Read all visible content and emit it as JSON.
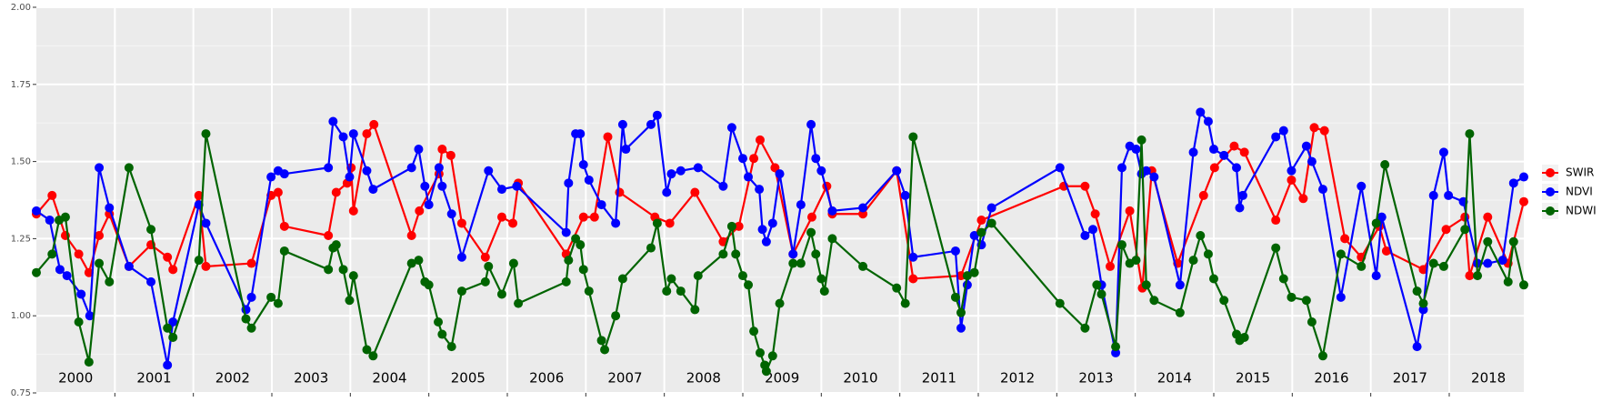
{
  "chart_data": {
    "type": "line",
    "xlim": [
      2000,
      2018.95
    ],
    "ylim": [
      0.75,
      2.0
    ],
    "yticks": [
      {
        "value": 0.75,
        "label": "0.75"
      },
      {
        "value": 1.0,
        "label": "1.00"
      },
      {
        "value": 1.25,
        "label": "1.25"
      },
      {
        "value": 1.5,
        "label": "1.50"
      },
      {
        "value": 1.75,
        "label": "1.75"
      },
      {
        "value": 2.0,
        "label": "2.00"
      }
    ],
    "xticks": [
      {
        "value": 2000.5,
        "label": "2000"
      },
      {
        "value": 2001.5,
        "label": "2001"
      },
      {
        "value": 2002.5,
        "label": "2002"
      },
      {
        "value": 2003.5,
        "label": "2003"
      },
      {
        "value": 2004.5,
        "label": "2004"
      },
      {
        "value": 2005.5,
        "label": "2005"
      },
      {
        "value": 2006.5,
        "label": "2006"
      },
      {
        "value": 2007.5,
        "label": "2007"
      },
      {
        "value": 2008.5,
        "label": "2008"
      },
      {
        "value": 2009.5,
        "label": "2009"
      },
      {
        "value": 2010.5,
        "label": "2010"
      },
      {
        "value": 2011.5,
        "label": "2011"
      },
      {
        "value": 2012.5,
        "label": "2012"
      },
      {
        "value": 2013.5,
        "label": "2013"
      },
      {
        "value": 2014.5,
        "label": "2014"
      },
      {
        "value": 2015.5,
        "label": "2015"
      },
      {
        "value": 2016.5,
        "label": "2016"
      },
      {
        "value": 2017.5,
        "label": "2017"
      },
      {
        "value": 2018.5,
        "label": "2018"
      }
    ],
    "xgrid": [
      2001,
      2002,
      2003,
      2004,
      2005,
      2006,
      2007,
      2008,
      2009,
      2010,
      2011,
      2012,
      2013,
      2014,
      2015,
      2016,
      2017,
      2018
    ],
    "grid": true,
    "legend": "right",
    "series": [
      {
        "name": "SWIR",
        "color": "#ff0000",
        "x": [
          2000.0,
          2000.2,
          2000.37,
          2000.54,
          2000.67,
          2000.8,
          2000.93,
          2001.18,
          2001.46,
          2001.67,
          2001.74,
          2002.07,
          2002.16,
          2002.74,
          2002.99,
          2003.08,
          2003.16,
          2003.72,
          2003.82,
          2003.96,
          2004.01,
          2004.04,
          2004.21,
          2004.3,
          2004.78,
          2004.88,
          2005.13,
          2005.17,
          2005.28,
          2005.42,
          2005.72,
          2005.93,
          2006.07,
          2006.14,
          2006.75,
          2006.97,
          2007.11,
          2007.28,
          2007.43,
          2007.88,
          2008.07,
          2008.39,
          2008.75,
          2008.95,
          2009.14,
          2009.22,
          2009.41,
          2009.64,
          2009.88,
          2010.07,
          2010.14,
          2010.53,
          2010.96,
          2011.17,
          2011.78,
          2012.04,
          2013.09,
          2013.36,
          2013.49,
          2013.68,
          2013.93,
          2014.09,
          2014.21,
          2014.54,
          2014.87,
          2015.01,
          2015.26,
          2015.39,
          2015.79,
          2015.99,
          2016.14,
          2016.28,
          2016.41,
          2016.67,
          2016.88,
          2017.11,
          2017.2,
          2017.67,
          2017.96,
          2018.2,
          2018.26,
          2018.49,
          2018.75,
          2018.95
        ],
        "values": [
          1.33,
          1.39,
          1.26,
          1.2,
          1.14,
          1.26,
          1.33,
          1.16,
          1.23,
          1.19,
          1.15,
          1.39,
          1.16,
          1.17,
          1.39,
          1.4,
          1.29,
          1.26,
          1.4,
          1.43,
          1.48,
          1.34,
          1.59,
          1.62,
          1.26,
          1.34,
          1.46,
          1.54,
          1.52,
          1.3,
          1.19,
          1.32,
          1.3,
          1.43,
          1.2,
          1.32,
          1.32,
          1.58,
          1.4,
          1.32,
          1.3,
          1.4,
          1.24,
          1.29,
          1.51,
          1.57,
          1.48,
          1.2,
          1.32,
          1.42,
          1.33,
          1.33,
          1.47,
          1.12,
          1.13,
          1.31,
          1.42,
          1.42,
          1.33,
          1.16,
          1.34,
          1.09,
          1.47,
          1.17,
          1.39,
          1.48,
          1.55,
          1.53,
          1.31,
          1.44,
          1.38,
          1.61,
          1.6,
          1.25,
          1.19,
          1.29,
          1.21,
          1.15,
          1.28,
          1.32,
          1.13,
          1.32,
          1.17,
          1.37
        ]
      },
      {
        "name": "NDVI",
        "color": "#0000ff",
        "x": [
          2000.0,
          2000.17,
          2000.3,
          2000.39,
          2000.57,
          2000.68,
          2000.8,
          2000.93,
          2001.18,
          2001.46,
          2001.67,
          2001.74,
          2002.07,
          2002.16,
          2002.67,
          2002.74,
          2002.99,
          2003.08,
          2003.16,
          2003.72,
          2003.78,
          2003.91,
          2003.99,
          2004.04,
          2004.21,
          2004.29,
          2004.78,
          2004.87,
          2004.95,
          2005.0,
          2005.13,
          2005.17,
          2005.29,
          2005.42,
          2005.76,
          2005.93,
          2006.12,
          2006.75,
          2006.78,
          2006.87,
          2006.93,
          2006.97,
          2007.04,
          2007.2,
          2007.38,
          2007.47,
          2007.51,
          2007.83,
          2007.91,
          2008.03,
          2008.09,
          2008.21,
          2008.43,
          2008.75,
          2008.86,
          2009.0,
          2009.07,
          2009.21,
          2009.25,
          2009.3,
          2009.38,
          2009.47,
          2009.64,
          2009.74,
          2009.87,
          2009.93,
          2010.0,
          2010.14,
          2010.53,
          2010.96,
          2011.07,
          2011.17,
          2011.71,
          2011.78,
          2011.86,
          2011.95,
          2012.04,
          2012.17,
          2013.04,
          2013.36,
          2013.46,
          2013.57,
          2013.75,
          2013.83,
          2013.93,
          2014.01,
          2014.08,
          2014.14,
          2014.24,
          2014.57,
          2014.74,
          2014.83,
          2014.93,
          2015.0,
          2015.13,
          2015.29,
          2015.33,
          2015.37,
          2015.79,
          2015.89,
          2015.99,
          2016.18,
          2016.25,
          2016.39,
          2016.62,
          2016.88,
          2017.07,
          2017.14,
          2017.59,
          2017.67,
          2017.8,
          2017.93,
          2017.99,
          2018.18,
          2018.36,
          2018.49,
          2018.68,
          2018.82,
          2018.95
        ],
        "values": [
          1.34,
          1.31,
          1.15,
          1.13,
          1.07,
          1.0,
          1.48,
          1.35,
          1.16,
          1.11,
          0.84,
          0.98,
          1.36,
          1.3,
          1.02,
          1.06,
          1.45,
          1.47,
          1.46,
          1.48,
          1.63,
          1.58,
          1.45,
          1.59,
          1.47,
          1.41,
          1.48,
          1.54,
          1.42,
          1.36,
          1.48,
          1.42,
          1.33,
          1.19,
          1.47,
          1.41,
          1.42,
          1.27,
          1.43,
          1.59,
          1.59,
          1.49,
          1.44,
          1.36,
          1.3,
          1.62,
          1.54,
          1.62,
          1.65,
          1.4,
          1.46,
          1.47,
          1.48,
          1.42,
          1.61,
          1.51,
          1.45,
          1.41,
          1.28,
          1.24,
          1.3,
          1.46,
          1.2,
          1.36,
          1.62,
          1.51,
          1.47,
          1.34,
          1.35,
          1.47,
          1.39,
          1.19,
          1.21,
          0.96,
          1.1,
          1.26,
          1.23,
          1.35,
          1.48,
          1.26,
          1.28,
          1.1,
          0.88,
          1.48,
          1.55,
          1.54,
          1.46,
          1.47,
          1.45,
          1.1,
          1.53,
          1.66,
          1.63,
          1.54,
          1.52,
          1.48,
          1.35,
          1.39,
          1.58,
          1.6,
          1.47,
          1.55,
          1.5,
          1.41,
          1.06,
          1.42,
          1.13,
          1.32,
          0.9,
          1.02,
          1.39,
          1.53,
          1.39,
          1.37,
          1.17,
          1.17,
          1.18,
          1.43,
          1.45
        ]
      },
      {
        "name": "NDWI",
        "color": "#006400",
        "x": [
          2000.0,
          2000.2,
          2000.29,
          2000.37,
          2000.54,
          2000.67,
          2000.8,
          2000.93,
          2001.18,
          2001.46,
          2001.67,
          2001.74,
          2002.07,
          2002.16,
          2002.67,
          2002.74,
          2002.99,
          2003.08,
          2003.16,
          2003.72,
          2003.78,
          2003.82,
          2003.91,
          2003.99,
          2004.04,
          2004.21,
          2004.29,
          2004.78,
          2004.87,
          2004.95,
          2005.0,
          2005.12,
          2005.17,
          2005.29,
          2005.42,
          2005.72,
          2005.76,
          2005.93,
          2006.08,
          2006.14,
          2006.75,
          2006.78,
          2006.87,
          2006.93,
          2006.97,
          2007.04,
          2007.2,
          2007.24,
          2007.38,
          2007.47,
          2007.83,
          2007.91,
          2008.03,
          2008.09,
          2008.21,
          2008.39,
          2008.43,
          2008.75,
          2008.86,
          2008.91,
          2009.0,
          2009.07,
          2009.14,
          2009.22,
          2009.28,
          2009.3,
          2009.38,
          2009.47,
          2009.64,
          2009.74,
          2009.87,
          2009.93,
          2010.0,
          2010.04,
          2010.14,
          2010.53,
          2010.96,
          2011.07,
          2011.17,
          2011.71,
          2011.78,
          2011.86,
          2011.95,
          2012.04,
          2012.17,
          2013.04,
          2013.36,
          2013.51,
          2013.57,
          2013.75,
          2013.83,
          2013.93,
          2014.01,
          2014.08,
          2014.14,
          2014.24,
          2014.57,
          2014.74,
          2014.83,
          2014.93,
          2015.0,
          2015.13,
          2015.29,
          2015.33,
          2015.39,
          2015.79,
          2015.89,
          2015.99,
          2016.18,
          2016.25,
          2016.39,
          2016.62,
          2016.88,
          2017.07,
          2017.18,
          2017.59,
          2017.67,
          2017.8,
          2017.93,
          2018.2,
          2018.26,
          2018.36,
          2018.49,
          2018.75,
          2018.82,
          2018.95
        ],
        "values": [
          1.14,
          1.2,
          1.31,
          1.32,
          0.98,
          0.85,
          1.17,
          1.11,
          1.48,
          1.28,
          0.96,
          0.93,
          1.18,
          1.59,
          0.99,
          0.96,
          1.06,
          1.04,
          1.21,
          1.15,
          1.22,
          1.23,
          1.15,
          1.05,
          1.13,
          0.89,
          0.87,
          1.17,
          1.18,
          1.11,
          1.1,
          0.98,
          0.94,
          0.9,
          1.08,
          1.11,
          1.16,
          1.07,
          1.17,
          1.04,
          1.11,
          1.18,
          1.25,
          1.23,
          1.15,
          1.08,
          0.92,
          0.89,
          1.0,
          1.12,
          1.22,
          1.3,
          1.08,
          1.12,
          1.08,
          1.02,
          1.13,
          1.2,
          1.29,
          1.2,
          1.13,
          1.1,
          0.95,
          0.88,
          0.84,
          0.82,
          0.87,
          1.04,
          1.17,
          1.17,
          1.27,
          1.2,
          1.12,
          1.08,
          1.25,
          1.16,
          1.09,
          1.04,
          1.58,
          1.06,
          1.01,
          1.13,
          1.14,
          1.27,
          1.3,
          1.04,
          0.96,
          1.1,
          1.07,
          0.9,
          1.23,
          1.17,
          1.18,
          1.57,
          1.1,
          1.05,
          1.01,
          1.18,
          1.26,
          1.2,
          1.12,
          1.05,
          0.94,
          0.92,
          0.93,
          1.22,
          1.12,
          1.06,
          1.05,
          0.98,
          0.87,
          1.2,
          1.16,
          1.3,
          1.49,
          1.08,
          1.04,
          1.17,
          1.16,
          1.28,
          1.59,
          1.13,
          1.24,
          1.11,
          1.24,
          1.1
        ]
      }
    ]
  }
}
